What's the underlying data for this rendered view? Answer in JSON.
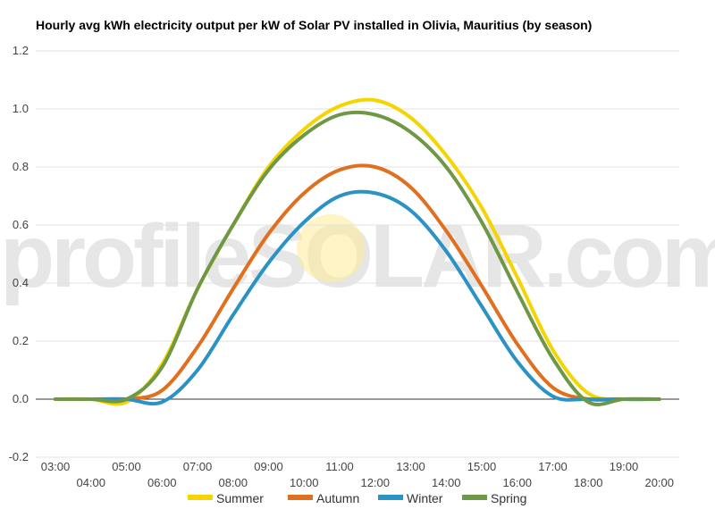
{
  "chart_data": {
    "type": "line",
    "title": "Hourly avg kWh electricity output per kW of Solar PV installed in Olivia, Mauritius (by season)",
    "watermark_text": "profileSOLAR.com",
    "xlabel": "",
    "ylabel": "",
    "ylim": [
      -0.2,
      1.2
    ],
    "yticks": [
      -0.2,
      0.0,
      0.2,
      0.4,
      0.6,
      0.8,
      1.0,
      1.2
    ],
    "ytick_labels": [
      "-0.2",
      "0.0",
      "0.2",
      "0.4",
      "0.6",
      "0.8",
      "1.0",
      "1.2"
    ],
    "x": [
      "03:00",
      "04:00",
      "05:00",
      "06:00",
      "07:00",
      "08:00",
      "09:00",
      "10:00",
      "11:00",
      "12:00",
      "13:00",
      "14:00",
      "15:00",
      "16:00",
      "17:00",
      "18:00",
      "19:00",
      "20:00"
    ],
    "grid": true,
    "legend_position": "bottom",
    "series": [
      {
        "name": "Summer",
        "color": "#f5d400",
        "values": [
          0,
          0,
          -0.01,
          0.12,
          0.38,
          0.6,
          0.8,
          0.93,
          1.01,
          1.03,
          0.97,
          0.84,
          0.66,
          0.42,
          0.17,
          0.02,
          0.0,
          0.0
        ]
      },
      {
        "name": "Autumn",
        "color": "#e07020",
        "values": [
          0,
          0,
          0.0,
          0.03,
          0.18,
          0.38,
          0.57,
          0.71,
          0.79,
          0.8,
          0.73,
          0.58,
          0.39,
          0.19,
          0.04,
          0.0,
          0.0,
          0.0
        ]
      },
      {
        "name": "Winter",
        "color": "#2a93c4",
        "values": [
          0,
          0,
          0.0,
          -0.01,
          0.1,
          0.29,
          0.47,
          0.61,
          0.7,
          0.71,
          0.65,
          0.51,
          0.32,
          0.13,
          0.01,
          0.0,
          0.0,
          0.0
        ]
      },
      {
        "name": "Spring",
        "color": "#6e9845",
        "values": [
          0,
          0,
          0.0,
          0.11,
          0.38,
          0.6,
          0.79,
          0.91,
          0.98,
          0.98,
          0.92,
          0.8,
          0.61,
          0.37,
          0.14,
          -0.01,
          0.0,
          0.0
        ]
      }
    ]
  }
}
